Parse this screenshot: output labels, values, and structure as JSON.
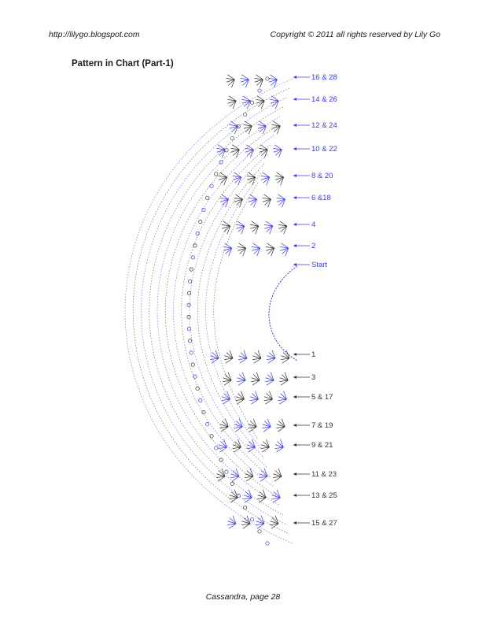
{
  "header": {
    "url": "http://lilygo.blogspot.com",
    "copyright": "Copyright © 2011 all rights reserved by Lily Go"
  },
  "title": "Pattern in Chart (Part-1)",
  "footer": "Cassandra, page 28",
  "colors": {
    "blue_rows": "#3a3af0",
    "black_rows": "#333333"
  },
  "row_labels": {
    "blue": [
      "16 & 28",
      "14 & 26",
      "12 & 24",
      "10 & 22",
      "8 & 20",
      "6 &18",
      "4",
      "2",
      "Start"
    ],
    "black": [
      "1",
      "3",
      "5 & 17",
      "7 & 19",
      "9 & 21",
      "11 & 23",
      "13 & 25",
      "15 & 27"
    ]
  }
}
